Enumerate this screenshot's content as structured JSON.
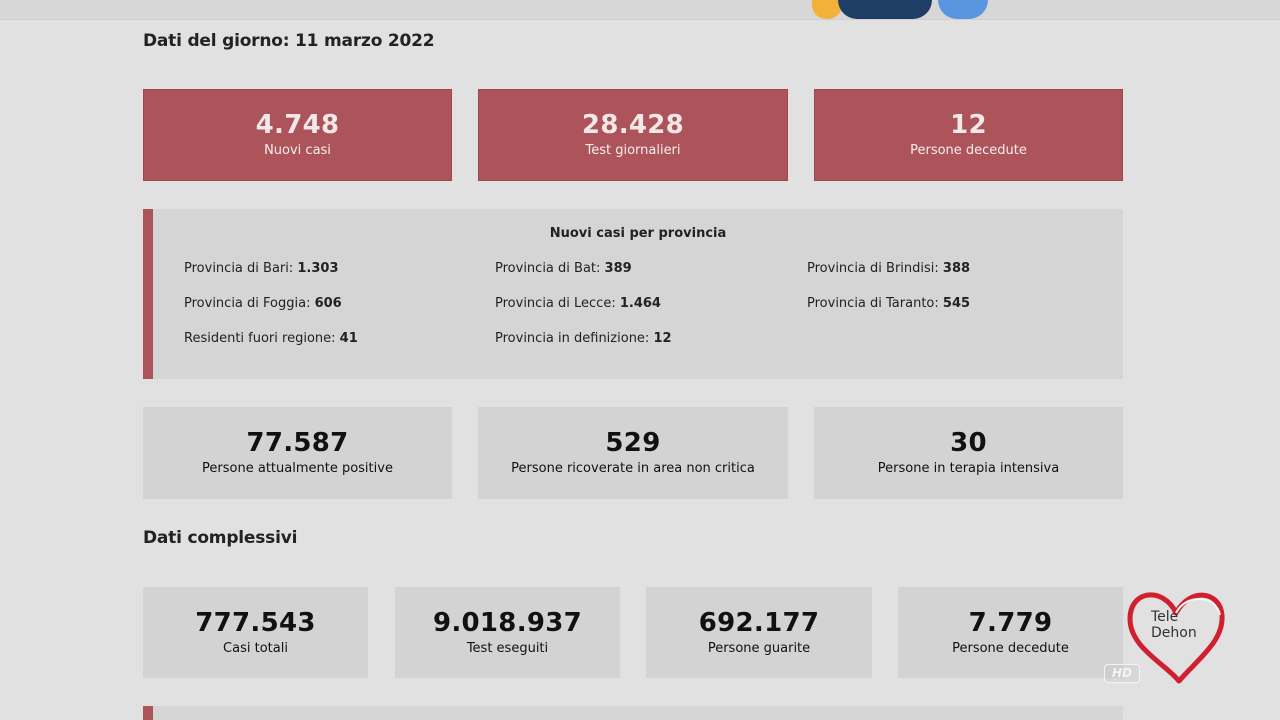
{
  "daily": {
    "title": "Dati del giorno: 11 marzo 2022",
    "cards": [
      {
        "value": "4.748",
        "label": "Nuovi casi"
      },
      {
        "value": "28.428",
        "label": "Test giornalieri"
      },
      {
        "value": "12",
        "label": "Persone decedute"
      }
    ]
  },
  "provinces": {
    "title": "Nuovi casi per provincia",
    "items": [
      {
        "label": "Provincia di Bari:",
        "value": "1.303"
      },
      {
        "label": "Provincia di Bat:",
        "value": "389"
      },
      {
        "label": "Provincia di Brindisi:",
        "value": "388"
      },
      {
        "label": "Provincia di Foggia:",
        "value": "606"
      },
      {
        "label": "Provincia di Lecce:",
        "value": "1.464"
      },
      {
        "label": "Provincia di Taranto:",
        "value": "545"
      },
      {
        "label": "Residenti fuori regione:",
        "value": "41"
      },
      {
        "label": "Provincia in definizione:",
        "value": "12"
      }
    ]
  },
  "status": {
    "cards": [
      {
        "value": "77.587",
        "label": "Persone attualmente positive"
      },
      {
        "value": "529",
        "label": "Persone ricoverate in area non critica"
      },
      {
        "value": "30",
        "label": "Persone in terapia intensiva"
      }
    ]
  },
  "totals": {
    "title": "Dati complessivi",
    "cards": [
      {
        "value": "777.543",
        "label": "Casi totali"
      },
      {
        "value": "9.018.937",
        "label": "Test eseguiti"
      },
      {
        "value": "692.177",
        "label": "Persone guarite"
      },
      {
        "value": "7.779",
        "label": "Persone decedute"
      }
    ]
  },
  "overlay": {
    "logo_line1": "Tele",
    "logo_line2": "Dehon",
    "hd": "HD"
  },
  "colors": {
    "accent_red": "#ad545a",
    "card_grey": "#d3d3d3",
    "background": "#e1e1e1"
  }
}
